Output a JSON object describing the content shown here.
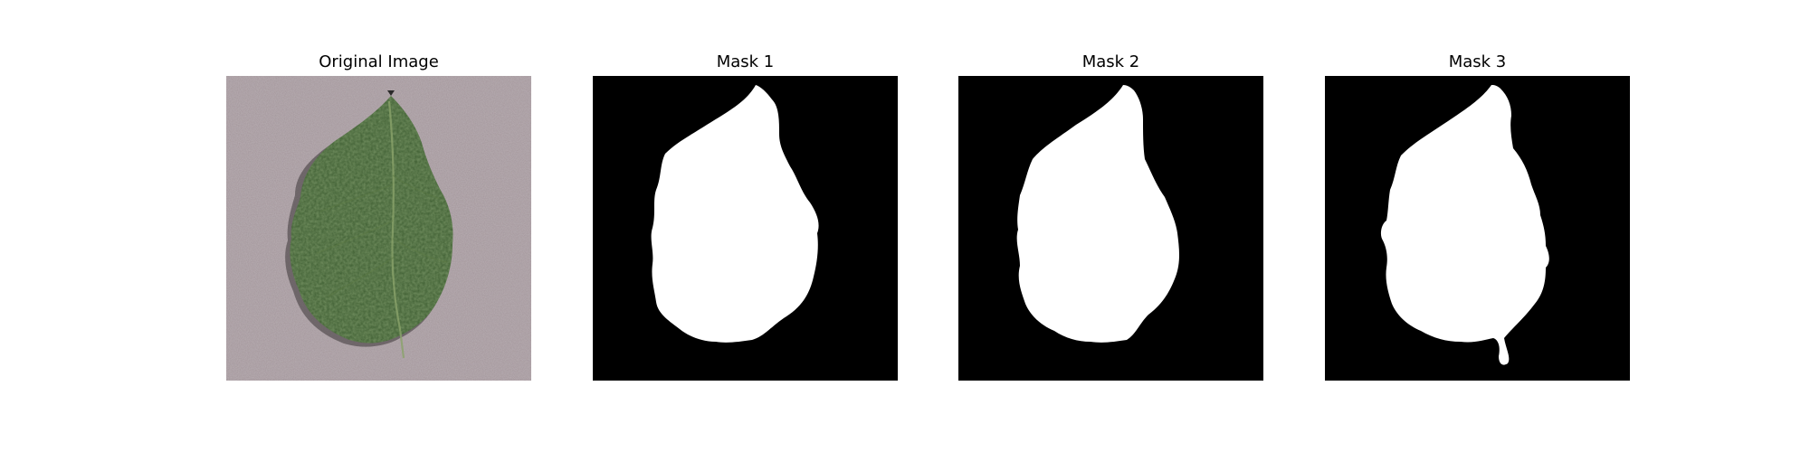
{
  "panels": {
    "original": {
      "title": "Original Image"
    },
    "mask1": {
      "title": "Mask 1"
    },
    "mask2": {
      "title": "Mask 2"
    },
    "mask3": {
      "title": "Mask 3"
    }
  },
  "colors": {
    "background_surface": "#a3969b",
    "leaf_dark": "#2e4a26",
    "leaf_mid": "#47683a",
    "leaf_light": "#7d9a55",
    "mask_background": "#000000",
    "mask_foreground": "#ffffff"
  }
}
